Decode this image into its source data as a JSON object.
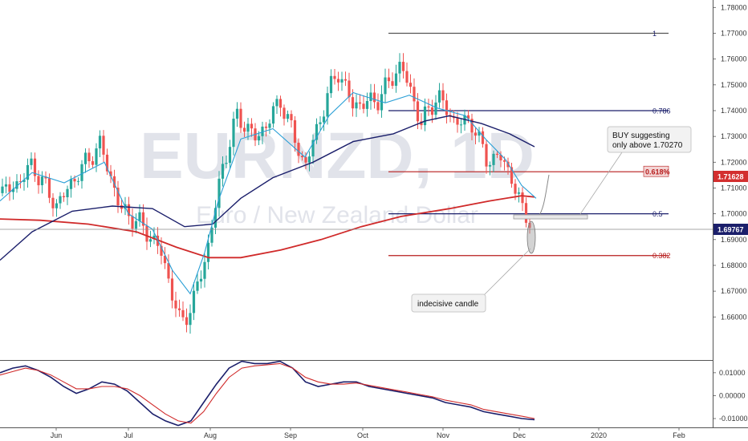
{
  "chart_data": [
    {
      "type": "candlestick",
      "watermark_symbol": "EURNZD, 1D",
      "watermark_name": "Euro / New Zealand Dollar",
      "ylim": [
        1.6433,
        1.7829
      ],
      "y_ticks": [
        "1.78000",
        "1.77000",
        "1.76000",
        "1.75000",
        "1.74000",
        "1.73000",
        "1.72000",
        "1.71000",
        "1.70000",
        "1.69000",
        "1.68000",
        "1.67000",
        "1.66000"
      ],
      "x_ticks": [
        "Jun",
        "Jul",
        "Aug",
        "Sep",
        "Oct",
        "Nov",
        "Dec",
        "2020",
        "Feb"
      ],
      "current_price": "1.69767",
      "fib_price_label": "1.71628",
      "grid": false,
      "moving_averages": [
        {
          "color": "#2a9fd6",
          "period_hint": "fast"
        },
        {
          "color": "#1b1f6b",
          "period_hint": "medium"
        },
        {
          "color": "#d02a2a",
          "period_hint": "slow"
        }
      ],
      "fib_levels": [
        {
          "label": "1",
          "value": 1.77,
          "color": "#555555"
        },
        {
          "label": "0.786",
          "value": 1.74,
          "color": "#1b1f6b"
        },
        {
          "label": "0.618%",
          "value": 1.7163,
          "color": "#b71c1c"
        },
        {
          "label": "0.5",
          "value": 1.7,
          "color": "#1b1f6b"
        },
        {
          "label": "0.382",
          "value": 1.6838,
          "color": "#b71c1c"
        }
      ],
      "annotations": [
        {
          "text_lines": [
            "BUY suggesting",
            "only above 1.70270"
          ]
        },
        {
          "text_lines": [
            "indecisive candle"
          ]
        }
      ],
      "colors": {
        "up": "#26a69a",
        "down": "#ef5350",
        "price_tag": "#1b1f6b",
        "fib_tag": "#d32f2f"
      }
    },
    {
      "type": "line",
      "indicator": "oscillator",
      "ylim": [
        -0.0135,
        0.0145
      ],
      "y_ticks": [
        "0.01000",
        "0.00000",
        "-0.01000"
      ],
      "series": [
        {
          "color": "#1b1f6b",
          "values": [
            0.01,
            0.012,
            0.013,
            0.011,
            0.008,
            0.004,
            0.001,
            0.003,
            0.006,
            0.005,
            0.002,
            -0.003,
            -0.008,
            -0.011,
            -0.013,
            -0.011,
            -0.003,
            0.005,
            0.012,
            0.015,
            0.014,
            0.014,
            0.015,
            0.012,
            0.006,
            0.004,
            0.005,
            0.006,
            0.006,
            0.004,
            0.003,
            0.002,
            0.001,
            0.0,
            -0.001,
            -0.003,
            -0.004,
            -0.005,
            -0.007,
            -0.008,
            -0.009,
            -0.01,
            -0.0105
          ]
        },
        {
          "color": "#d02a2a",
          "values": [
            0.009,
            0.0105,
            0.012,
            0.011,
            0.009,
            0.006,
            0.003,
            0.003,
            0.004,
            0.004,
            0.003,
            0.0,
            -0.004,
            -0.008,
            -0.011,
            -0.012,
            -0.007,
            0.001,
            0.008,
            0.012,
            0.013,
            0.0135,
            0.014,
            0.012,
            0.008,
            0.006,
            0.005,
            0.005,
            0.0055,
            0.0045,
            0.0035,
            0.0025,
            0.0015,
            0.0005,
            -0.0005,
            -0.002,
            -0.003,
            -0.004,
            -0.006,
            -0.007,
            -0.008,
            -0.009,
            -0.01
          ]
        }
      ]
    }
  ]
}
